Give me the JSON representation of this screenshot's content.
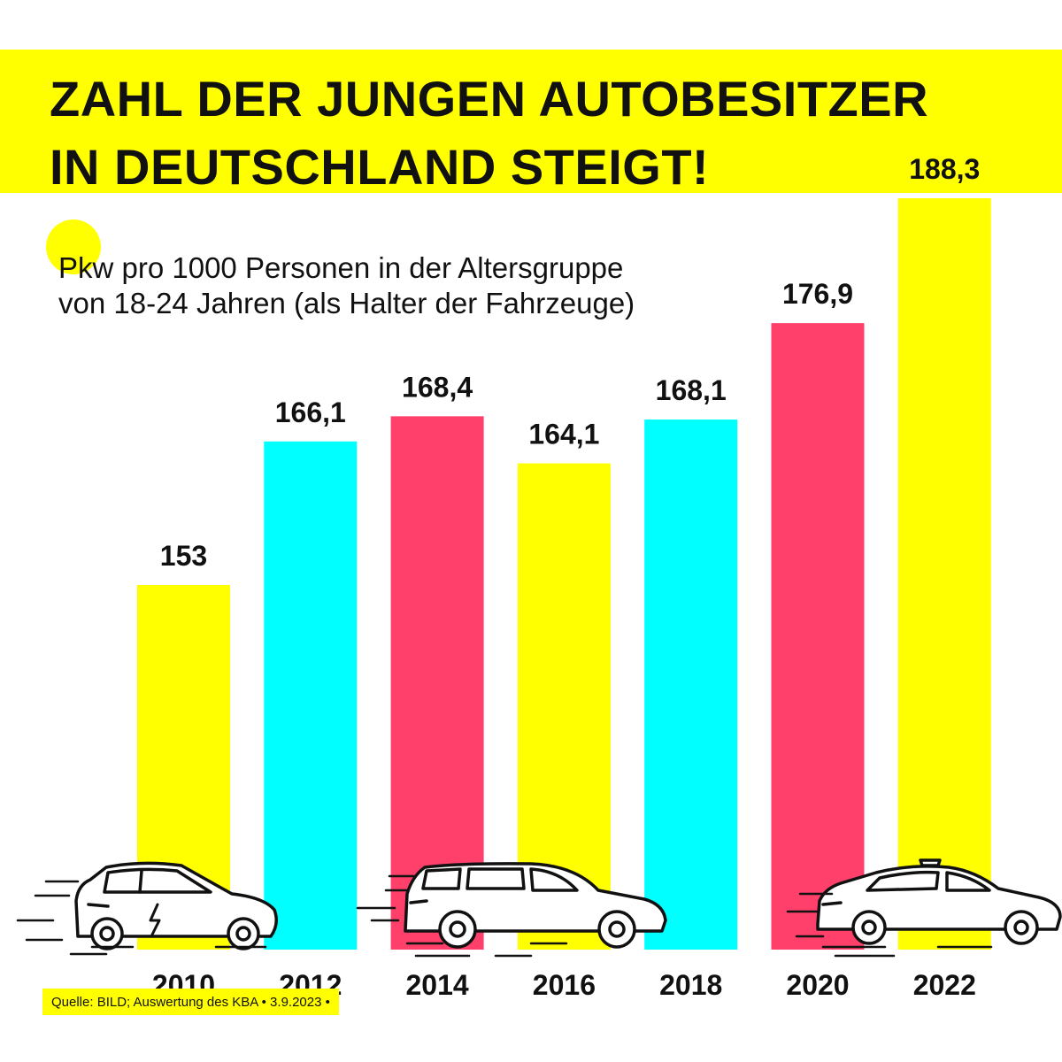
{
  "header": {
    "title_line1": "ZAHL DER JUNGEN AUTOBESITZER",
    "title_line2": "IN DEUTSCHLAND STEIGT!"
  },
  "chart_data": {
    "type": "bar",
    "title": "ZAHL DER JUNGEN AUTOBESITZER IN DEUTSCHLAND STEIGT!",
    "subtitle_line1": "Pkw pro 1000 Personen in der Altersgruppe",
    "subtitle_line2": "von 18-24 Jahren (als Halter der Fahrzeuge)",
    "categories": [
      "2010",
      "2012",
      "2014",
      "2016",
      "2018",
      "2020",
      "2022"
    ],
    "values": [
      153,
      166.1,
      168.4,
      164.1,
      168.1,
      176.9,
      188.3
    ],
    "value_labels": [
      "153",
      "166,1",
      "168,4",
      "164,1",
      "168,1",
      "176,9",
      "188,3"
    ],
    "bar_colors": [
      "#ffff00",
      "#00ffff",
      "#ff406b",
      "#ffff00",
      "#00ffff",
      "#ff406b",
      "#ffff00"
    ],
    "xlabel": "",
    "ylabel": "",
    "grid": false,
    "legend": "none"
  },
  "illustrations": [
    "electric-car-icon",
    "station-wagon-icon",
    "taxi-sedan-icon"
  ],
  "footer": {
    "source": "Quelle: BILD; Auswertung des KBA • 3.9.2023 •"
  }
}
